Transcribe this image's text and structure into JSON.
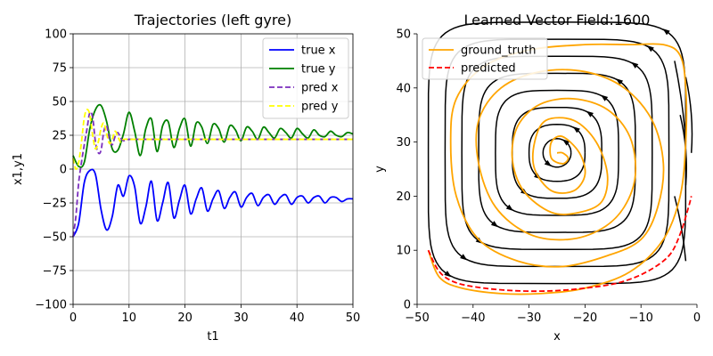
{
  "chart_data": [
    {
      "type": "line",
      "title": "Trajectories (left gyre)",
      "xlabel": "t1",
      "ylabel": "x1,y1",
      "xlim": [
        0,
        50
      ],
      "ylim": [
        -100,
        100
      ],
      "xticks": [
        0,
        10,
        20,
        30,
        40,
        50
      ],
      "yticks": [
        -100,
        -75,
        -50,
        -25,
        0,
        25,
        50,
        75,
        100
      ],
      "grid": true,
      "legend_position": "top-right",
      "series": [
        {
          "name": "true x",
          "color": "#0000ff",
          "style": "solid",
          "x": [
            0,
            1,
            2,
            3,
            4,
            5,
            6,
            7,
            8,
            9,
            10,
            11,
            12,
            13,
            14,
            15,
            16,
            17,
            18,
            19,
            20,
            21,
            22,
            23,
            24,
            25,
            26,
            27,
            28,
            29,
            30,
            31,
            32,
            33,
            34,
            35,
            36,
            37,
            38,
            39,
            40,
            41,
            42,
            43,
            44,
            45,
            46,
            47,
            48,
            49,
            50
          ],
          "y": [
            -50,
            -40,
            -10,
            -1,
            -4,
            -30,
            -45,
            -35,
            -12,
            -20,
            -5,
            -13,
            -40,
            -28,
            -9,
            -38,
            -25,
            -10,
            -36,
            -23,
            -12,
            -33,
            -22,
            -14,
            -31,
            -22,
            -16,
            -29,
            -21,
            -17,
            -28,
            -21,
            -18,
            -27,
            -21,
            -19,
            -26,
            -21,
            -19,
            -26,
            -21,
            -20,
            -25,
            -21,
            -20,
            -25,
            -21,
            -21,
            -24,
            -22,
            -22
          ]
        },
        {
          "name": "true y",
          "color": "#008000",
          "style": "solid",
          "x": [
            0,
            1,
            2,
            3,
            4,
            5,
            6,
            7,
            8,
            9,
            10,
            11,
            12,
            13,
            14,
            15,
            16,
            17,
            18,
            19,
            20,
            21,
            22,
            23,
            24,
            25,
            26,
            27,
            28,
            29,
            30,
            31,
            32,
            33,
            34,
            35,
            36,
            37,
            38,
            39,
            40,
            41,
            42,
            43,
            44,
            45,
            46,
            47,
            48,
            49,
            50
          ],
          "y": [
            10,
            2,
            5,
            30,
            44,
            47,
            35,
            15,
            14,
            26,
            42,
            28,
            10,
            30,
            37,
            13,
            32,
            35,
            16,
            30,
            37,
            17,
            34,
            31,
            19,
            33,
            30,
            20,
            32,
            29,
            21,
            31,
            28,
            22,
            31,
            27,
            23,
            30,
            27,
            23,
            30,
            26,
            23,
            29,
            25,
            24,
            28,
            25,
            24,
            27,
            26
          ]
        },
        {
          "name": "pred x",
          "color": "#7b2fbe",
          "style": "dashed",
          "x": [
            0,
            0.5,
            1,
            1.5,
            2,
            2.5,
            3,
            3.5,
            4,
            4.5,
            5,
            5.5,
            6,
            6.5,
            7,
            7.5,
            8,
            8.5,
            9,
            10,
            12,
            15,
            20,
            25,
            30,
            35,
            40,
            45,
            50
          ],
          "y": [
            -50,
            -35,
            -10,
            5,
            18,
            30,
            42,
            38,
            20,
            12,
            14,
            28,
            32,
            22,
            18,
            24,
            27,
            23,
            21,
            22,
            22,
            22,
            22,
            22,
            22,
            22,
            22,
            22,
            22
          ]
        },
        {
          "name": "pred y",
          "color": "#ffff00",
          "style": "dashed",
          "x": [
            0,
            0.5,
            1,
            1.5,
            2,
            2.5,
            3,
            3.5,
            4,
            4.5,
            5,
            5.5,
            6,
            6.5,
            7,
            7.5,
            8,
            8.5,
            9,
            10,
            12,
            15,
            20,
            25,
            30,
            35,
            40,
            45,
            50
          ],
          "y": [
            8,
            0,
            5,
            20,
            38,
            44,
            40,
            25,
            15,
            20,
            30,
            34,
            26,
            19,
            22,
            28,
            24,
            20,
            22,
            22,
            22,
            22,
            22,
            22,
            22,
            22,
            22,
            22,
            22
          ]
        }
      ]
    },
    {
      "type": "streamplot",
      "title": "Learned Vector Field:1600",
      "xlabel": "x",
      "ylabel": "y",
      "xlim": [
        -50,
        0
      ],
      "ylim": [
        0,
        50
      ],
      "xticks": [
        -50,
        -40,
        -30,
        -20,
        -10,
        0
      ],
      "yticks": [
        0,
        10,
        20,
        30,
        40,
        50
      ],
      "grid": false,
      "legend_position": "top-left",
      "gyre_center": [
        -25,
        28
      ],
      "streamline_color": "#000000",
      "series": [
        {
          "name": "ground_truth",
          "color": "#ffa500",
          "style": "solid",
          "x": [
            -48,
            -46,
            -42,
            -35,
            -28,
            -20,
            -12,
            -6,
            -3,
            -2,
            -2,
            -3,
            -6,
            -12,
            -20,
            -30,
            -38,
            -43,
            -44,
            -43,
            -39,
            -32,
            -24,
            -16,
            -10,
            -7,
            -6,
            -8,
            -13,
            -20,
            -28,
            -35,
            -39,
            -39,
            -36,
            -30,
            -23,
            -17,
            -13,
            -11,
            -12,
            -16,
            -22,
            -28,
            -32,
            -33,
            -31,
            -26,
            -21,
            -17,
            -16,
            -18,
            -22,
            -27,
            -29,
            -29,
            -26,
            -22,
            -20,
            -21,
            -24,
            -26,
            -26,
            -24,
            -23,
            -24,
            -25
          ],
          "y": [
            10,
            5,
            3,
            2,
            2,
            3,
            6,
            12,
            20,
            30,
            40,
            46,
            48,
            48,
            48,
            47,
            44,
            38,
            30,
            20,
            12,
            8,
            7,
            9,
            12,
            18,
            26,
            34,
            40,
            43,
            43,
            40,
            34,
            26,
            18,
            13,
            12,
            14,
            18,
            24,
            31,
            36,
            38,
            37,
            33,
            27,
            21,
            17,
            17,
            19,
            24,
            30,
            34,
            34,
            30,
            25,
            21,
            21,
            24,
            28,
            31,
            30,
            27,
            26,
            27,
            28,
            28
          ]
        },
        {
          "name": "predicted",
          "color": "#ff0000",
          "style": "dashed",
          "x": [
            -48,
            -46,
            -43,
            -38,
            -32,
            -26,
            -20,
            -14,
            -9,
            -5,
            -3,
            -1.5,
            -1
          ],
          "y": [
            10,
            6,
            4,
            3,
            2.5,
            2.5,
            3,
            4,
            6,
            9,
            13,
            18,
            20
          ]
        }
      ]
    }
  ]
}
